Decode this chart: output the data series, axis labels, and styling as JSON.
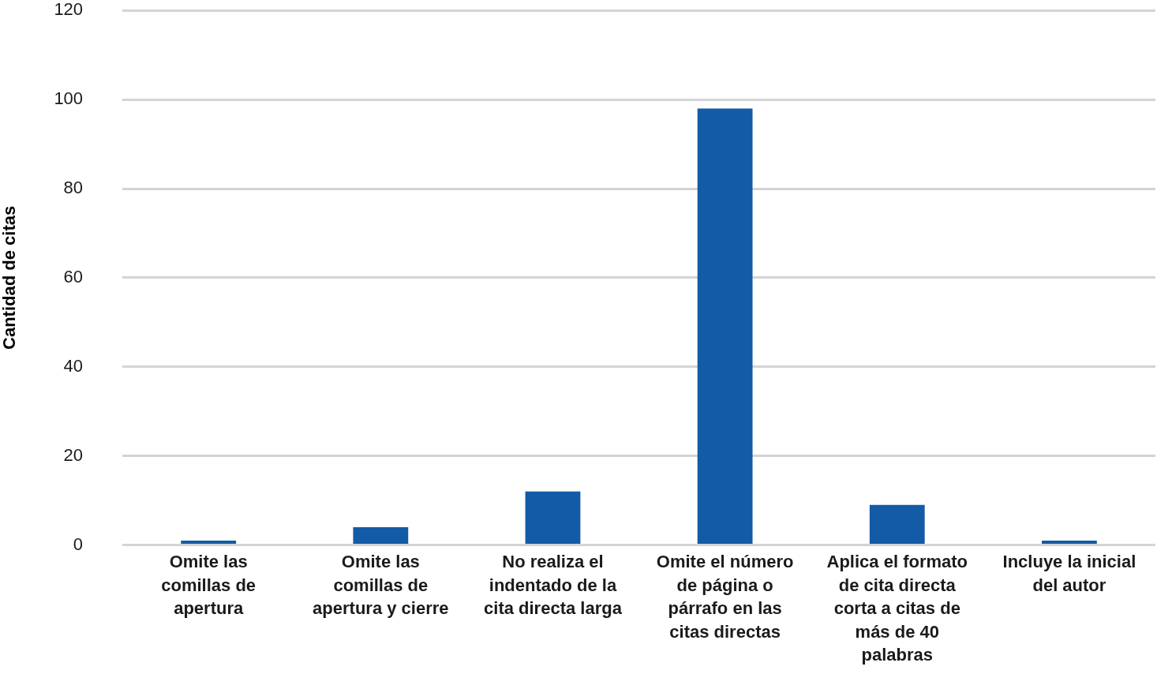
{
  "chart_data": {
    "type": "bar",
    "ylabel": "Cantidad de citas",
    "categories": [
      "Omite las comillas de apertura",
      "Omite las comillas de apertura y cierre",
      "No realiza el indentado de la cita directa larga",
      "Omite el número de página o párrafo en las citas directas",
      "Aplica el formato de cita directa corta a citas de más de 40 palabras",
      "Incluye la inicial del autor"
    ],
    "values": [
      1,
      4,
      12,
      98,
      9,
      1
    ],
    "color": "#135ba6",
    "ylim": [
      0,
      120
    ],
    "yticks": [
      0,
      20,
      40,
      60,
      80,
      100,
      120
    ],
    "grid": "y"
  }
}
